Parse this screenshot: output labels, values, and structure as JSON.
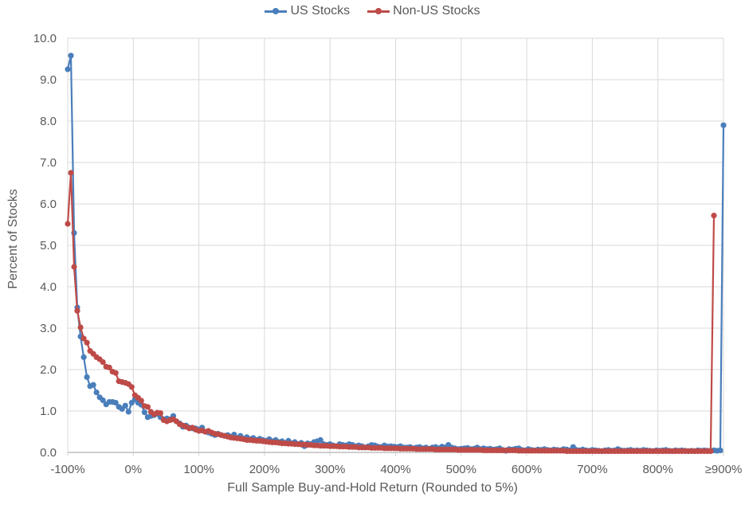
{
  "legend": {
    "items": [
      {
        "label": "US Stocks",
        "color": "#4a7ebb"
      },
      {
        "label": "Non-US Stocks",
        "color": "#be4b48"
      }
    ]
  },
  "axes": {
    "y_title": "Percent of Stocks",
    "x_title": "Full Sample Buy-and-Hold Return (Rounded to 5%)"
  },
  "colors": {
    "us": "#4a7ebb",
    "non_us": "#be4b48",
    "grid": "#d9d9d9",
    "text": "#595959"
  },
  "chart_data": {
    "type": "line",
    "title": "",
    "xlabel": "Full Sample Buy-and-Hold Return (Rounded to 5%)",
    "ylabel": "Percent of Stocks",
    "ylim": [
      0,
      10
    ],
    "yticks": [
      "0.0",
      "1.0",
      "2.0",
      "3.0",
      "4.0",
      "5.0",
      "6.0",
      "7.0",
      "8.0",
      "9.0",
      "10.0"
    ],
    "xticks": [
      "-100%",
      "0%",
      "100%",
      "200%",
      "300%",
      "400%",
      "500%",
      "600%",
      "700%",
      "800%",
      "≥900%"
    ],
    "grid": true,
    "legend_position": "top",
    "x_start": -100,
    "x_step": 5,
    "x_last_label": "≥900%",
    "series": [
      {
        "name": "US Stocks",
        "color": "#4a7ebb",
        "values": [
          9.25,
          9.58,
          5.3,
          3.5,
          2.8,
          2.3,
          1.82,
          1.6,
          1.63,
          1.45,
          1.33,
          1.26,
          1.16,
          1.22,
          1.22,
          1.2,
          1.1,
          1.05,
          1.13,
          0.98,
          1.2,
          1.28,
          1.2,
          1.15,
          0.97,
          0.85,
          0.88,
          0.9,
          0.93,
          0.85,
          0.8,
          0.82,
          0.8,
          0.88,
          0.75,
          0.7,
          0.62,
          0.65,
          0.6,
          0.58,
          0.58,
          0.55,
          0.6,
          0.5,
          0.48,
          0.45,
          0.42,
          0.45,
          0.42,
          0.4,
          0.42,
          0.38,
          0.43,
          0.35,
          0.4,
          0.33,
          0.37,
          0.32,
          0.35,
          0.3,
          0.33,
          0.3,
          0.28,
          0.32,
          0.27,
          0.3,
          0.25,
          0.27,
          0.23,
          0.28,
          0.22,
          0.25,
          0.2,
          0.23,
          0.15,
          0.22,
          0.2,
          0.25,
          0.27,
          0.3,
          0.2,
          0.18,
          0.2,
          0.17,
          0.15,
          0.2,
          0.18,
          0.17,
          0.2,
          0.18,
          0.15,
          0.17,
          0.15,
          0.12,
          0.15,
          0.18,
          0.17,
          0.14,
          0.13,
          0.17,
          0.14,
          0.15,
          0.14,
          0.13,
          0.15,
          0.12,
          0.12,
          0.13,
          0.1,
          0.12,
          0.13,
          0.1,
          0.12,
          0.09,
          0.12,
          0.13,
          0.1,
          0.14,
          0.12,
          0.18,
          0.12,
          0.1,
          0.08,
          0.09,
          0.1,
          0.11,
          0.08,
          0.09,
          0.12,
          0.08,
          0.1,
          0.08,
          0.09,
          0.07,
          0.08,
          0.1,
          0.06,
          0.04,
          0.08,
          0.07,
          0.09,
          0.1,
          0.06,
          0.05,
          0.08,
          0.06,
          0.05,
          0.07,
          0.06,
          0.08,
          0.06,
          0.05,
          0.07,
          0.06,
          0.05,
          0.08,
          0.07,
          0.05,
          0.13,
          0.06,
          0.05,
          0.07,
          0.05,
          0.04,
          0.06,
          0.05,
          0.04,
          0.03,
          0.05,
          0.06,
          0.04,
          0.05,
          0.08,
          0.05,
          0.04,
          0.05,
          0.06,
          0.04,
          0.05,
          0.04,
          0.06,
          0.05,
          0.04,
          0.03,
          0.05,
          0.04,
          0.05,
          0.06,
          0.04,
          0.03,
          0.05,
          0.04,
          0.05,
          0.04,
          0.03,
          0.04,
          0.03,
          0.05,
          0.04,
          0.05,
          0.04,
          0.04,
          0.05,
          0.04,
          0.05,
          7.9
        ]
      },
      {
        "name": "Non-US Stocks",
        "color": "#be4b48",
        "values": [
          5.52,
          6.75,
          4.48,
          3.42,
          3.02,
          2.75,
          2.65,
          2.45,
          2.38,
          2.3,
          2.25,
          2.18,
          2.07,
          2.05,
          1.95,
          1.92,
          1.72,
          1.7,
          1.68,
          1.65,
          1.58,
          1.38,
          1.32,
          1.25,
          1.12,
          1.1,
          0.98,
          0.92,
          0.96,
          0.95,
          0.78,
          0.75,
          0.78,
          0.8,
          0.75,
          0.68,
          0.65,
          0.62,
          0.58,
          0.6,
          0.55,
          0.52,
          0.53,
          0.5,
          0.52,
          0.48,
          0.45,
          0.44,
          0.42,
          0.4,
          0.38,
          0.36,
          0.35,
          0.34,
          0.33,
          0.32,
          0.3,
          0.3,
          0.29,
          0.28,
          0.28,
          0.27,
          0.26,
          0.25,
          0.24,
          0.24,
          0.23,
          0.22,
          0.22,
          0.21,
          0.21,
          0.2,
          0.2,
          0.19,
          0.19,
          0.18,
          0.18,
          0.17,
          0.17,
          0.16,
          0.16,
          0.16,
          0.15,
          0.15,
          0.15,
          0.14,
          0.14,
          0.14,
          0.13,
          0.13,
          0.13,
          0.12,
          0.12,
          0.12,
          0.12,
          0.11,
          0.11,
          0.11,
          0.11,
          0.1,
          0.1,
          0.1,
          0.1,
          0.1,
          0.09,
          0.09,
          0.09,
          0.09,
          0.09,
          0.08,
          0.08,
          0.08,
          0.08,
          0.08,
          0.08,
          0.07,
          0.07,
          0.07,
          0.07,
          0.07,
          0.07,
          0.07,
          0.06,
          0.06,
          0.06,
          0.06,
          0.06,
          0.06,
          0.06,
          0.06,
          0.05,
          0.05,
          0.05,
          0.05,
          0.05,
          0.05,
          0.05,
          0.05,
          0.05,
          0.05,
          0.05,
          0.04,
          0.04,
          0.04,
          0.04,
          0.04,
          0.04,
          0.04,
          0.04,
          0.04,
          0.04,
          0.04,
          0.04,
          0.04,
          0.04,
          0.04,
          0.03,
          0.03,
          0.03,
          0.03,
          0.03,
          0.03,
          0.03,
          0.03,
          0.03,
          0.03,
          0.03,
          0.03,
          0.03,
          0.03,
          0.03,
          0.03,
          0.03,
          0.03,
          0.03,
          0.03,
          0.03,
          0.03,
          0.03,
          0.03,
          0.03,
          0.03,
          0.03,
          0.03,
          0.03,
          0.03,
          0.03,
          0.03,
          0.03,
          0.03,
          0.03,
          0.03,
          0.03,
          0.03,
          0.03,
          0.03,
          0.03,
          0.03,
          0.03,
          0.03,
          0.03,
          0.03,
          5.72
        ]
      }
    ]
  }
}
